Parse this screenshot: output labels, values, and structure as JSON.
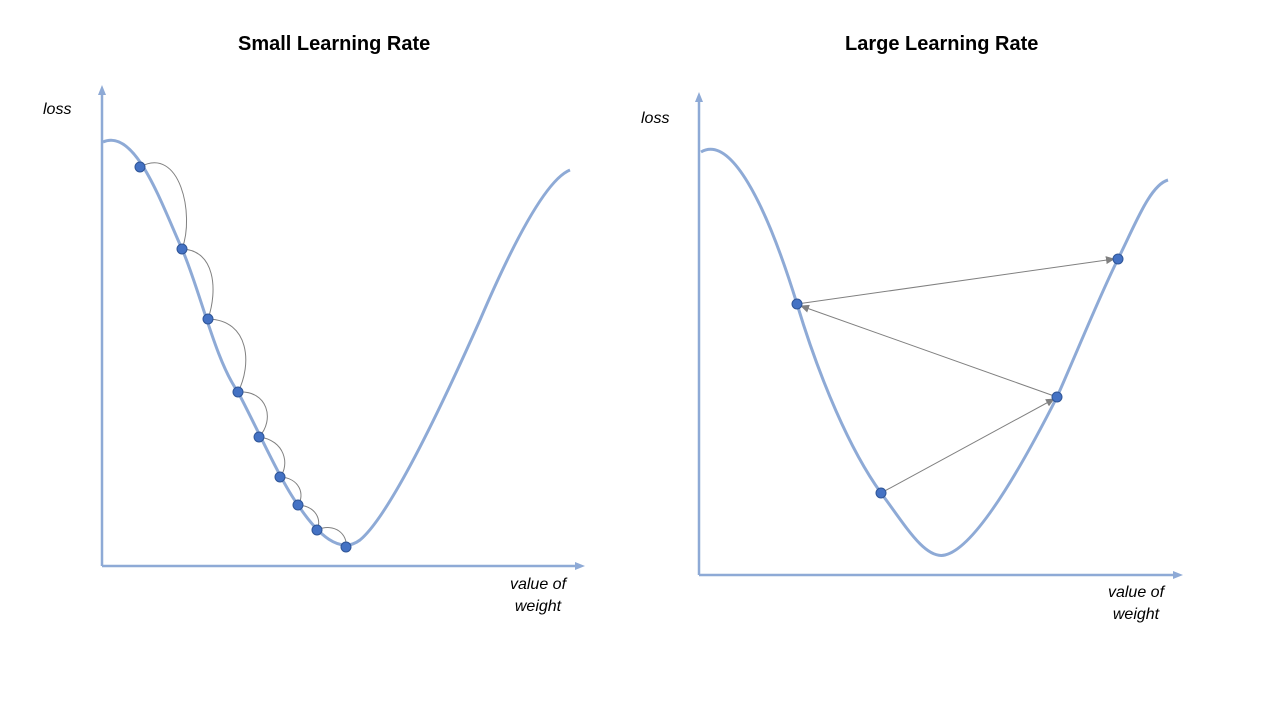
{
  "colors": {
    "axis": "#8eaad6",
    "curve": "#8eaad6",
    "point_fill": "#4472c4",
    "point_stroke": "#2f5597",
    "arrow": "#808080"
  },
  "left": {
    "title": "Small Learning Rate",
    "y_label": "loss",
    "x_label_line1": "value of",
    "x_label_line2": "weight"
  },
  "right": {
    "title": "Large Learning Rate",
    "y_label": "loss",
    "x_label_line1": "value of",
    "x_label_line2": "weight"
  }
}
